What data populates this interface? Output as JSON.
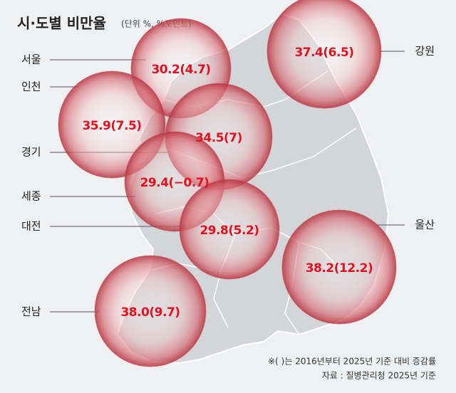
{
  "header": {
    "title": "시·도별 비만율",
    "subtitle": "(단위 %, %포인트)"
  },
  "regions": [
    {
      "name": "서울",
      "label": "30.2(4.7)"
    },
    {
      "name": "강원",
      "label": "37.4(6.5)"
    },
    {
      "name": "인천",
      "label": "35.9(7.5)"
    },
    {
      "name": "경기",
      "label": "34.5(7)"
    },
    {
      "name": "세종",
      "label": "29.4(−0.7)"
    },
    {
      "name": "대전",
      "label": "29.8(5.2)"
    },
    {
      "name": "울산",
      "label": "38.2(12.2)"
    },
    {
      "name": "전남",
      "label": "38.0(9.7)"
    }
  ],
  "footer": {
    "note": "※(       )는 2016년부터 2025년 기준 대비 증감률",
    "source": "자료 : 질병관리청 2025년 기준"
  }
}
